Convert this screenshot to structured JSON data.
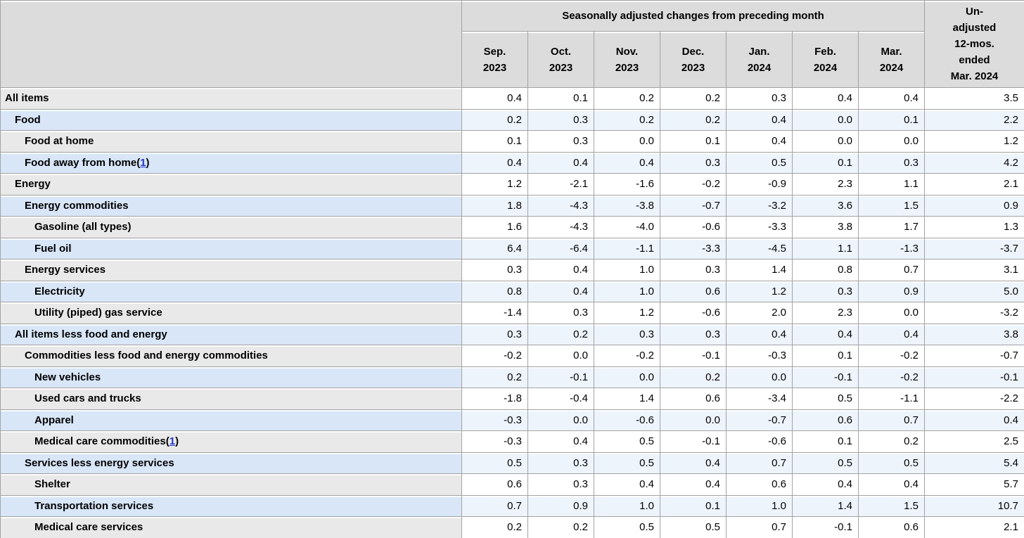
{
  "colors": {
    "header_bg": "#dcdcdc",
    "row_gray_label_bg": "#e9e9e9",
    "row_blue_label_bg": "#d8e6f8",
    "row_blue_data_bg": "#eef4fc",
    "row_gray_data_bg": "#ffffff",
    "border": "#a3a3a3",
    "link_blue": "#2438cc"
  },
  "table": {
    "group_header": "Seasonally adjusted changes from preceding month",
    "unadjusted_header_lines": [
      "Un-",
      "adjusted",
      "12-mos.",
      "ended",
      "Mar. 2024"
    ],
    "month_columns": [
      {
        "month": "Sep.",
        "year": "2023"
      },
      {
        "month": "Oct.",
        "year": "2023"
      },
      {
        "month": "Nov.",
        "year": "2023"
      },
      {
        "month": "Dec.",
        "year": "2023"
      },
      {
        "month": "Jan.",
        "year": "2024"
      },
      {
        "month": "Feb.",
        "year": "2024"
      },
      {
        "month": "Mar.",
        "year": "2024"
      }
    ],
    "rows": [
      {
        "label": "All items",
        "indent": 0,
        "footnote": null,
        "values": [
          "0.4",
          "0.1",
          "0.2",
          "0.2",
          "0.3",
          "0.4",
          "0.4",
          "3.5"
        ]
      },
      {
        "label": "Food",
        "indent": 1,
        "footnote": null,
        "values": [
          "0.2",
          "0.3",
          "0.2",
          "0.2",
          "0.4",
          "0.0",
          "0.1",
          "2.2"
        ]
      },
      {
        "label": "Food at home",
        "indent": 2,
        "footnote": null,
        "values": [
          "0.1",
          "0.3",
          "0.0",
          "0.1",
          "0.4",
          "0.0",
          "0.0",
          "1.2"
        ]
      },
      {
        "label": "Food away from home",
        "indent": 2,
        "footnote": "1",
        "values": [
          "0.4",
          "0.4",
          "0.4",
          "0.3",
          "0.5",
          "0.1",
          "0.3",
          "4.2"
        ]
      },
      {
        "label": "Energy",
        "indent": 1,
        "footnote": null,
        "values": [
          "1.2",
          "-2.1",
          "-1.6",
          "-0.2",
          "-0.9",
          "2.3",
          "1.1",
          "2.1"
        ]
      },
      {
        "label": "Energy commodities",
        "indent": 2,
        "footnote": null,
        "values": [
          "1.8",
          "-4.3",
          "-3.8",
          "-0.7",
          "-3.2",
          "3.6",
          "1.5",
          "0.9"
        ]
      },
      {
        "label": "Gasoline (all types)",
        "indent": 3,
        "footnote": null,
        "values": [
          "1.6",
          "-4.3",
          "-4.0",
          "-0.6",
          "-3.3",
          "3.8",
          "1.7",
          "1.3"
        ]
      },
      {
        "label": "Fuel oil",
        "indent": 3,
        "footnote": null,
        "values": [
          "6.4",
          "-6.4",
          "-1.1",
          "-3.3",
          "-4.5",
          "1.1",
          "-1.3",
          "-3.7"
        ]
      },
      {
        "label": "Energy services",
        "indent": 2,
        "footnote": null,
        "values": [
          "0.3",
          "0.4",
          "1.0",
          "0.3",
          "1.4",
          "0.8",
          "0.7",
          "3.1"
        ]
      },
      {
        "label": "Electricity",
        "indent": 3,
        "footnote": null,
        "values": [
          "0.8",
          "0.4",
          "1.0",
          "0.6",
          "1.2",
          "0.3",
          "0.9",
          "5.0"
        ]
      },
      {
        "label": "Utility (piped) gas service",
        "indent": 3,
        "footnote": null,
        "values": [
          "-1.4",
          "0.3",
          "1.2",
          "-0.6",
          "2.0",
          "2.3",
          "0.0",
          "-3.2"
        ]
      },
      {
        "label": "All items less food and energy",
        "indent": 1,
        "footnote": null,
        "values": [
          "0.3",
          "0.2",
          "0.3",
          "0.3",
          "0.4",
          "0.4",
          "0.4",
          "3.8"
        ]
      },
      {
        "label": "Commodities less food and energy commodities",
        "indent": 2,
        "footnote": null,
        "values": [
          "-0.2",
          "0.0",
          "-0.2",
          "-0.1",
          "-0.3",
          "0.1",
          "-0.2",
          "-0.7"
        ]
      },
      {
        "label": "New vehicles",
        "indent": 3,
        "footnote": null,
        "values": [
          "0.2",
          "-0.1",
          "0.0",
          "0.2",
          "0.0",
          "-0.1",
          "-0.2",
          "-0.1"
        ]
      },
      {
        "label": "Used cars and trucks",
        "indent": 3,
        "footnote": null,
        "values": [
          "-1.8",
          "-0.4",
          "1.4",
          "0.6",
          "-3.4",
          "0.5",
          "-1.1",
          "-2.2"
        ]
      },
      {
        "label": "Apparel",
        "indent": 3,
        "footnote": null,
        "values": [
          "-0.3",
          "0.0",
          "-0.6",
          "0.0",
          "-0.7",
          "0.6",
          "0.7",
          "0.4"
        ]
      },
      {
        "label": "Medical care commodities",
        "indent": 3,
        "footnote": "1",
        "values": [
          "-0.3",
          "0.4",
          "0.5",
          "-0.1",
          "-0.6",
          "0.1",
          "0.2",
          "2.5"
        ]
      },
      {
        "label": "Services less energy services",
        "indent": 2,
        "footnote": null,
        "values": [
          "0.5",
          "0.3",
          "0.5",
          "0.4",
          "0.7",
          "0.5",
          "0.5",
          "5.4"
        ]
      },
      {
        "label": "Shelter",
        "indent": 3,
        "footnote": null,
        "values": [
          "0.6",
          "0.3",
          "0.4",
          "0.4",
          "0.6",
          "0.4",
          "0.4",
          "5.7"
        ]
      },
      {
        "label": "Transportation services",
        "indent": 3,
        "footnote": null,
        "values": [
          "0.7",
          "0.9",
          "1.0",
          "0.1",
          "1.0",
          "1.4",
          "1.5",
          "10.7"
        ]
      },
      {
        "label": "Medical care services",
        "indent": 3,
        "footnote": null,
        "values": [
          "0.2",
          "0.2",
          "0.5",
          "0.5",
          "0.7",
          "-0.1",
          "0.6",
          "2.1"
        ]
      }
    ]
  }
}
